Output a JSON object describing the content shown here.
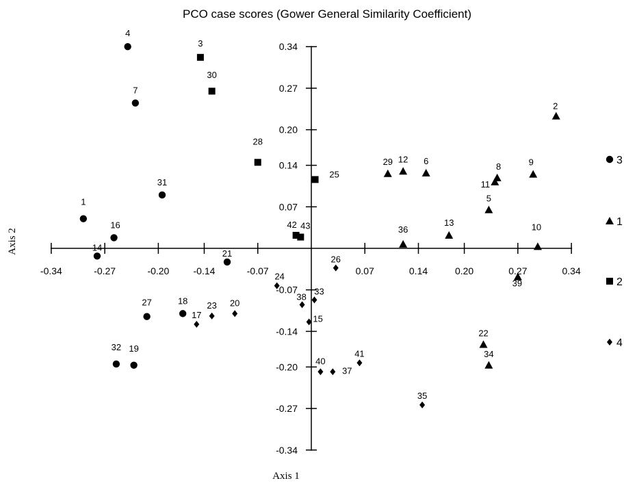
{
  "chart_data": {
    "type": "scatter",
    "title": "PCO case scores (Gower General Similarity Coefficient)",
    "xlabel": "Axis 1",
    "ylabel": "Axis 2",
    "xlim": [
      -0.34,
      0.34
    ],
    "ylim": [
      -0.34,
      0.34
    ],
    "xticks": [
      -0.34,
      -0.27,
      -0.2,
      -0.14,
      -0.07,
      0.07,
      0.14,
      0.2,
      0.27,
      0.34
    ],
    "xtick_labels": [
      "-0.34",
      "-0.27",
      "-0.20",
      "-0.14",
      "-0.07",
      "0.07",
      "0.14",
      "0.20",
      "0.27",
      "0.34"
    ],
    "yticks": [
      0.34,
      0.27,
      0.2,
      0.14,
      0.07,
      -0.07,
      -0.14,
      -0.2,
      -0.27,
      -0.34
    ],
    "ytick_labels": [
      "0.34",
      "0.27",
      "0.20",
      "0.14",
      "0.07",
      "-0.07",
      "-0.14",
      "-0.20",
      "-0.27",
      "-0.34"
    ],
    "grid": false,
    "legend_position": "right",
    "series": [
      {
        "name": "3",
        "marker": "circle",
        "points": [
          {
            "label": "4",
            "x": -0.24,
            "y": 0.34
          },
          {
            "label": "7",
            "x": -0.23,
            "y": 0.245
          },
          {
            "label": "31",
            "x": -0.195,
            "y": 0.09
          },
          {
            "label": "1",
            "x": -0.298,
            "y": 0.05
          },
          {
            "label": "16",
            "x": -0.258,
            "y": 0.018
          },
          {
            "label": "14",
            "x": -0.28,
            "y": -0.013
          },
          {
            "label": "21",
            "x": -0.11,
            "y": -0.023
          },
          {
            "label": "27",
            "x": -0.215,
            "y": -0.115
          },
          {
            "label": "18",
            "x": -0.168,
            "y": -0.11
          },
          {
            "label": "32",
            "x": -0.255,
            "y": -0.195
          },
          {
            "label": "19",
            "x": -0.232,
            "y": -0.197
          }
        ]
      },
      {
        "name": "1",
        "marker": "triangle",
        "points": [
          {
            "label": "2",
            "x": 0.32,
            "y": 0.223
          },
          {
            "label": "29",
            "x": 0.1,
            "y": 0.126
          },
          {
            "label": "12",
            "x": 0.12,
            "y": 0.13
          },
          {
            "label": "6",
            "x": 0.15,
            "y": 0.127
          },
          {
            "label": "8",
            "x": 0.243,
            "y": 0.119
          },
          {
            "label": "11",
            "x": 0.24,
            "y": 0.112
          },
          {
            "label": "9",
            "x": 0.29,
            "y": 0.125
          },
          {
            "label": "5",
            "x": 0.232,
            "y": 0.065
          },
          {
            "label": "36",
            "x": 0.12,
            "y": 0.007
          },
          {
            "label": "13",
            "x": 0.18,
            "y": 0.022
          },
          {
            "label": "10",
            "x": 0.296,
            "y": 0.003
          },
          {
            "label": "39",
            "x": 0.27,
            "y": -0.048
          },
          {
            "label": "22",
            "x": 0.225,
            "y": -0.162
          },
          {
            "label": "34",
            "x": 0.232,
            "y": -0.197
          }
        ]
      },
      {
        "name": "2",
        "marker": "square",
        "points": [
          {
            "label": "3",
            "x": -0.145,
            "y": 0.322
          },
          {
            "label": "30",
            "x": -0.13,
            "y": 0.265
          },
          {
            "label": "28",
            "x": -0.07,
            "y": 0.145
          },
          {
            "label": "25",
            "x": 0.005,
            "y": 0.116
          },
          {
            "label": "42",
            "x": -0.02,
            "y": 0.022
          },
          {
            "label": "43",
            "x": -0.014,
            "y": 0.019
          }
        ]
      },
      {
        "name": "4",
        "marker": "diamond",
        "points": [
          {
            "label": "24",
            "x": -0.045,
            "y": -0.063
          },
          {
            "label": "26",
            "x": 0.032,
            "y": -0.033
          },
          {
            "label": "33",
            "x": 0.004,
            "y": -0.087
          },
          {
            "label": "38",
            "x": -0.012,
            "y": -0.095
          },
          {
            "label": "15",
            "x": -0.003,
            "y": -0.124
          },
          {
            "label": "20",
            "x": -0.1,
            "y": -0.11
          },
          {
            "label": "23",
            "x": -0.13,
            "y": -0.114
          },
          {
            "label": "17",
            "x": -0.15,
            "y": -0.128
          },
          {
            "label": "41",
            "x": 0.063,
            "y": -0.193
          },
          {
            "label": "40",
            "x": 0.012,
            "y": -0.208
          },
          {
            "label": "37",
            "x": 0.028,
            "y": -0.208
          },
          {
            "label": "35",
            "x": 0.145,
            "y": -0.264
          }
        ]
      }
    ]
  }
}
